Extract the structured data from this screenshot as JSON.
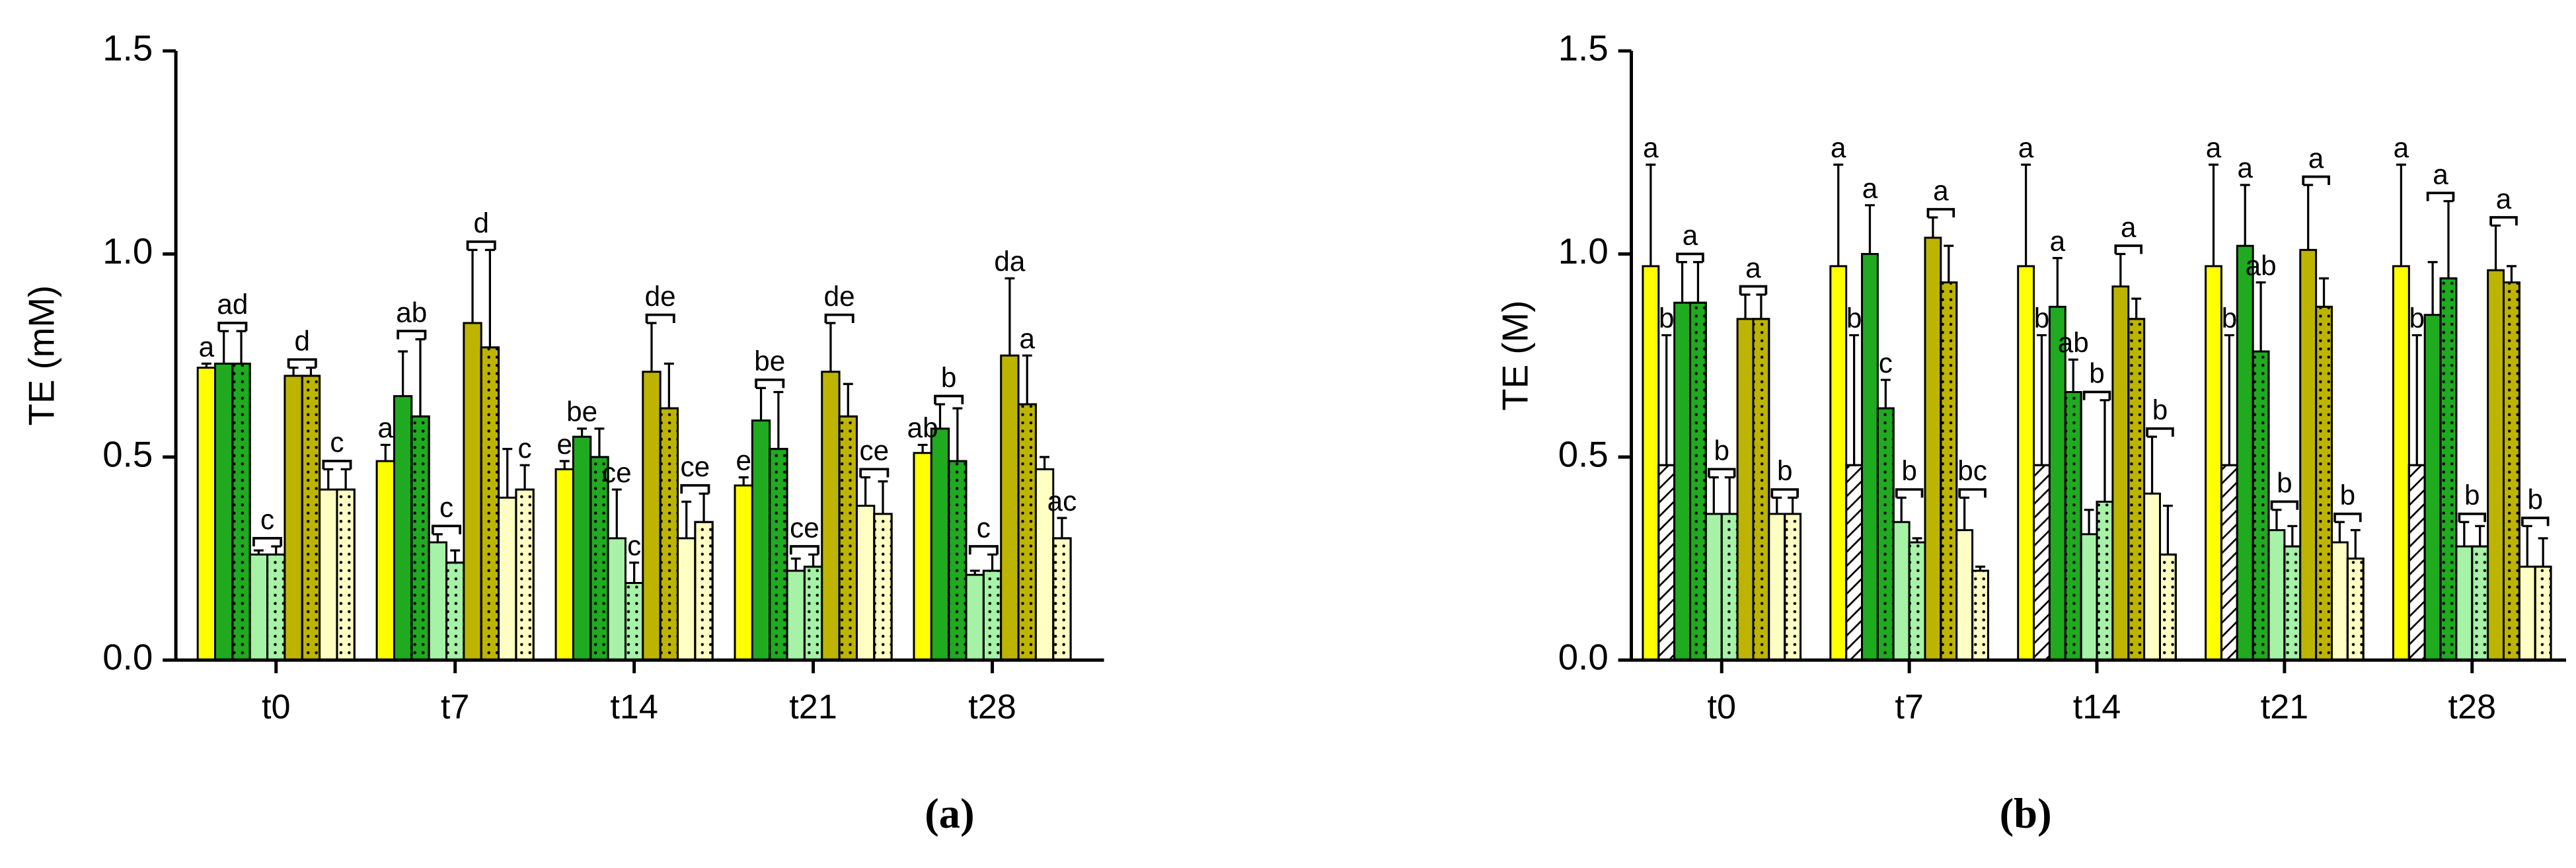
{
  "chart_data": [
    {
      "type": "bar",
      "panel_label": "(a)",
      "y_label": "TE (mM)",
      "categories": [
        "t0",
        "t7",
        "t14",
        "t21",
        "t28"
      ],
      "ylim": [
        0,
        1.5
      ],
      "yticks": [
        {
          "value": 0,
          "label": "0.0"
        },
        0.5,
        {
          "value": 1,
          "label": "1.0"
        },
        1.5
      ],
      "series": [
        {
          "color": "#ffff00",
          "pattern": null,
          "values": [
            0.72,
            0.49,
            0.47,
            0.43,
            0.51
          ],
          "errors": [
            0.01,
            0.04,
            0.02,
            0.02,
            0.02
          ]
        },
        {
          "color": "#1faa1f",
          "pattern": null,
          "values": [
            0.73,
            0.65,
            0.55,
            0.59,
            0.57
          ],
          "errors": [
            0.08,
            0.11,
            0.02,
            0.08,
            0.06
          ]
        },
        {
          "color": "#1faa1f",
          "pattern": "dots",
          "values": [
            0.73,
            0.6,
            0.5,
            0.52,
            0.49
          ],
          "errors": [
            0.08,
            0.19,
            0.07,
            0.14,
            0.13
          ]
        },
        {
          "color": "#a6f2a6",
          "pattern": null,
          "values": [
            0.26,
            0.29,
            0.3,
            0.22,
            0.21
          ],
          "errors": [
            0.01,
            0.02,
            0.12,
            0.03,
            0.01
          ]
        },
        {
          "color": "#a6f2a6",
          "pattern": "dots",
          "values": [
            0.26,
            0.24,
            0.19,
            0.23,
            0.22
          ],
          "errors": [
            0.02,
            0.03,
            0.05,
            0.03,
            0.04
          ]
        },
        {
          "color": "#bdb400",
          "pattern": null,
          "values": [
            0.7,
            0.83,
            0.71,
            0.71,
            0.75
          ],
          "errors": [
            0.02,
            0.18,
            0.12,
            0.12,
            0.19
          ]
        },
        {
          "color": "#bdb400",
          "pattern": "dots",
          "values": [
            0.7,
            0.77,
            0.62,
            0.6,
            0.63
          ],
          "errors": [
            0.02,
            0.24,
            0.11,
            0.08,
            0.12
          ]
        },
        {
          "color": "#ffffc4",
          "pattern": null,
          "values": [
            0.42,
            0.4,
            0.3,
            0.38,
            0.47
          ],
          "errors": [
            0.05,
            0.12,
            0.09,
            0.07,
            0.03
          ]
        },
        {
          "color": "#ffffc4",
          "pattern": "dots",
          "values": [
            0.42,
            0.42,
            0.34,
            0.36,
            0.3
          ],
          "errors": [
            0.05,
            0.06,
            0.07,
            0.08,
            0.05
          ]
        }
      ],
      "annotations": [
        {
          "category": "t0",
          "series": [
            0
          ],
          "text": "a"
        },
        {
          "category": "t0",
          "series": [
            1,
            2
          ],
          "text": "ad"
        },
        {
          "category": "t0",
          "series": [
            3,
            4
          ],
          "text": "c"
        },
        {
          "category": "t0",
          "series": [
            5,
            6
          ],
          "text": "d"
        },
        {
          "category": "t0",
          "series": [
            7,
            8
          ],
          "text": "c"
        },
        {
          "category": "t7",
          "series": [
            0
          ],
          "text": "a"
        },
        {
          "category": "t7",
          "series": [
            1,
            2
          ],
          "text": "ab"
        },
        {
          "category": "t7",
          "series": [
            3,
            4
          ],
          "text": "c"
        },
        {
          "category": "t7",
          "series": [
            5,
            6
          ],
          "text": "d"
        },
        {
          "category": "t7",
          "series": [
            8
          ],
          "text": "c"
        },
        {
          "category": "t14",
          "series": [
            0
          ],
          "text": "e"
        },
        {
          "category": "t14",
          "series": [
            1
          ],
          "text": "be"
        },
        {
          "category": "t14",
          "series": [
            3
          ],
          "text": "ce"
        },
        {
          "category": "t14",
          "series": [
            4
          ],
          "text": "c"
        },
        {
          "category": "t14",
          "series": [
            5,
            6
          ],
          "text": "de"
        },
        {
          "category": "t14",
          "series": [
            7,
            8
          ],
          "text": "ce"
        },
        {
          "category": "t21",
          "series": [
            0
          ],
          "text": "e"
        },
        {
          "category": "t21",
          "series": [
            1,
            2
          ],
          "text": "be"
        },
        {
          "category": "t21",
          "series": [
            3,
            4
          ],
          "text": "ce"
        },
        {
          "category": "t21",
          "series": [
            5,
            6
          ],
          "text": "de"
        },
        {
          "category": "t21",
          "series": [
            7,
            8
          ],
          "text": "ce"
        },
        {
          "category": "t28",
          "series": [
            0
          ],
          "text": "ab"
        },
        {
          "category": "t28",
          "series": [
            1,
            2
          ],
          "text": "b"
        },
        {
          "category": "t28",
          "series": [
            3,
            4
          ],
          "text": "c"
        },
        {
          "category": "t28",
          "series": [
            5
          ],
          "text": "da"
        },
        {
          "category": "t28",
          "series": [
            6
          ],
          "text": "a"
        },
        {
          "category": "t28",
          "series": [
            8
          ],
          "text": "ac"
        }
      ]
    },
    {
      "type": "bar",
      "panel_label": "(b)",
      "y_label": "TE (M)",
      "categories": [
        "t0",
        "t7",
        "t14",
        "t21",
        "t28"
      ],
      "ylim": [
        0,
        1.5
      ],
      "yticks": [
        {
          "value": 0,
          "label": "0.0"
        },
        0.5,
        {
          "value": 1,
          "label": "1.0"
        },
        1.5
      ],
      "series": [
        {
          "color": "#ffff00",
          "pattern": null,
          "values": [
            0.97,
            0.97,
            0.97,
            0.97,
            0.97
          ],
          "errors": [
            0.25,
            0.25,
            0.25,
            0.25,
            0.25
          ]
        },
        {
          "color": "#ffffff",
          "pattern": "hatch",
          "values": [
            0.48,
            0.48,
            0.48,
            0.48,
            0.48
          ],
          "errors": [
            0.32,
            0.32,
            0.32,
            0.32,
            0.32
          ]
        },
        {
          "color": "#1faa1f",
          "pattern": null,
          "values": [
            0.88,
            1.0,
            0.87,
            1.02,
            0.85
          ],
          "errors": [
            0.1,
            0.12,
            0.12,
            0.15,
            0.13
          ]
        },
        {
          "color": "#1faa1f",
          "pattern": "dots",
          "values": [
            0.88,
            0.62,
            0.66,
            0.76,
            0.94
          ],
          "errors": [
            0.1,
            0.07,
            0.08,
            0.17,
            0.19
          ]
        },
        {
          "color": "#a6f2a6",
          "pattern": null,
          "values": [
            0.36,
            0.34,
            0.31,
            0.32,
            0.28
          ],
          "errors": [
            0.09,
            0.06,
            0.06,
            0.05,
            0.06
          ]
        },
        {
          "color": "#a6f2a6",
          "pattern": "dots",
          "values": [
            0.36,
            0.29,
            0.39,
            0.28,
            0.28
          ],
          "errors": [
            0.09,
            0.01,
            0.25,
            0.05,
            0.05
          ]
        },
        {
          "color": "#bdb400",
          "pattern": null,
          "values": [
            0.84,
            1.04,
            0.92,
            1.01,
            0.96
          ],
          "errors": [
            0.06,
            0.05,
            0.08,
            0.16,
            0.11
          ]
        },
        {
          "color": "#bdb400",
          "pattern": "dots",
          "values": [
            0.84,
            0.93,
            0.84,
            0.87,
            0.93
          ],
          "errors": [
            0.06,
            0.09,
            0.05,
            0.07,
            0.04
          ]
        },
        {
          "color": "#ffffc4",
          "pattern": null,
          "values": [
            0.36,
            0.32,
            0.41,
            0.29,
            0.23
          ],
          "errors": [
            0.04,
            0.08,
            0.14,
            0.05,
            0.1
          ]
        },
        {
          "color": "#ffffc4",
          "pattern": "dots",
          "values": [
            0.36,
            0.22,
            0.26,
            0.25,
            0.23
          ],
          "errors": [
            0.04,
            0.01,
            0.12,
            0.07,
            0.07
          ]
        }
      ],
      "annotations": [
        {
          "category": "t0",
          "series": [
            0
          ],
          "text": "a"
        },
        {
          "category": "t0",
          "series": [
            1
          ],
          "text": "b"
        },
        {
          "category": "t0",
          "series": [
            2,
            3
          ],
          "text": "a"
        },
        {
          "category": "t0",
          "series": [
            4,
            5
          ],
          "text": "b"
        },
        {
          "category": "t0",
          "series": [
            6,
            7
          ],
          "text": "a"
        },
        {
          "category": "t0",
          "series": [
            8,
            9
          ],
          "text": "b"
        },
        {
          "category": "t7",
          "series": [
            0
          ],
          "text": "a"
        },
        {
          "category": "t7",
          "series": [
            1
          ],
          "text": "b"
        },
        {
          "category": "t7",
          "series": [
            2
          ],
          "text": "a"
        },
        {
          "category": "t7",
          "series": [
            3
          ],
          "text": "c"
        },
        {
          "category": "t7",
          "series": [
            4,
            5
          ],
          "text": "b"
        },
        {
          "category": "t7",
          "series": [
            6,
            7
          ],
          "text": "a"
        },
        {
          "category": "t7",
          "series": [
            8,
            9
          ],
          "text": "bc"
        },
        {
          "category": "t14",
          "series": [
            0
          ],
          "text": "a"
        },
        {
          "category": "t14",
          "series": [
            1
          ],
          "text": "b"
        },
        {
          "category": "t14",
          "series": [
            2
          ],
          "text": "a"
        },
        {
          "category": "t14",
          "series": [
            3
          ],
          "text": "ab"
        },
        {
          "category": "t14",
          "series": [
            4,
            5
          ],
          "text": "b"
        },
        {
          "category": "t14",
          "series": [
            6,
            7
          ],
          "text": "a"
        },
        {
          "category": "t14",
          "series": [
            8,
            9
          ],
          "text": "b"
        },
        {
          "category": "t21",
          "series": [
            0
          ],
          "text": "a"
        },
        {
          "category": "t21",
          "series": [
            1
          ],
          "text": "b"
        },
        {
          "category": "t21",
          "series": [
            2
          ],
          "text": "a"
        },
        {
          "category": "t21",
          "series": [
            3
          ],
          "text": "ab"
        },
        {
          "category": "t21",
          "series": [
            4,
            5
          ],
          "text": "b"
        },
        {
          "category": "t21",
          "series": [
            6,
            7
          ],
          "text": "a"
        },
        {
          "category": "t21",
          "series": [
            8,
            9
          ],
          "text": "b"
        },
        {
          "category": "t28",
          "series": [
            0
          ],
          "text": "a"
        },
        {
          "category": "t28",
          "series": [
            1
          ],
          "text": "b"
        },
        {
          "category": "t28",
          "series": [
            2,
            3
          ],
          "text": "a"
        },
        {
          "category": "t28",
          "series": [
            4,
            5
          ],
          "text": "b"
        },
        {
          "category": "t28",
          "series": [
            6,
            7
          ],
          "text": "a"
        },
        {
          "category": "t28",
          "series": [
            8,
            9
          ],
          "text": "b"
        }
      ]
    }
  ]
}
